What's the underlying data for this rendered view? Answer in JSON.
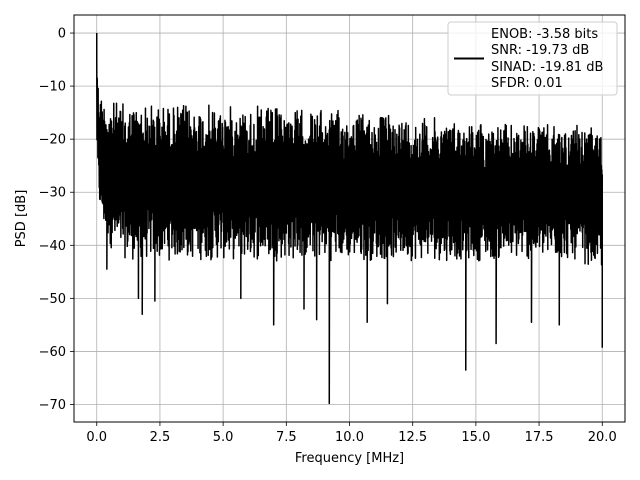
{
  "chart_data": {
    "type": "line",
    "xlabel": "Frequency [MHz]",
    "ylabel": "PSD [dB]",
    "xlim": [
      -0.9,
      20.9
    ],
    "ylim": [
      -73.3,
      3.4
    ],
    "xticks": [
      0.0,
      2.5,
      5.0,
      7.5,
      10.0,
      12.5,
      15.0,
      17.5,
      20.0
    ],
    "xtick_labels": [
      "0.0",
      "2.5",
      "5.0",
      "7.5",
      "10.0",
      "12.5",
      "15.0",
      "17.5",
      "20.0"
    ],
    "yticks": [
      0,
      -10,
      -20,
      -30,
      -40,
      -50,
      -60,
      -70
    ],
    "ytick_labels": [
      "0",
      "−10",
      "−20",
      "−30",
      "−40",
      "−50",
      "−60",
      "−70"
    ],
    "grid": true,
    "legend_position": "top-right",
    "line_color": "#000000",
    "series": [
      {
        "legend_lines": [
          "ENOB: -3.58 bits",
          "SNR: -19.73 dB",
          "SINAD: -19.81 dB",
          "SFDR: 0.01"
        ],
        "envelope": {
          "x": [
            0.0,
            0.05,
            0.12,
            0.3,
            0.6,
            1.0,
            1.5,
            2.0,
            2.5,
            3.0,
            4.0,
            5.0,
            6.0,
            7.0,
            8.0,
            9.0,
            10.0,
            11.0,
            12.0,
            13.0,
            14.0,
            15.0,
            16.0,
            17.0,
            18.0,
            19.0,
            20.0
          ],
          "upper": [
            0.0,
            -8.0,
            -10.5,
            -12.0,
            -12.5,
            -13.0,
            -13.0,
            -13.0,
            -13.0,
            -13.2,
            -13.2,
            -13.5,
            -13.6,
            -13.8,
            -14.0,
            -14.3,
            -14.6,
            -14.9,
            -15.2,
            -15.6,
            -16.0,
            -16.4,
            -16.8,
            -17.0,
            -17.2,
            -17.4,
            -18.0
          ],
          "lower": [
            -22.0,
            -30.0,
            -34.0,
            -38.0,
            -41.0,
            -42.5,
            -43.0,
            -43.0,
            -43.0,
            -43.0,
            -43.0,
            -43.0,
            -43.0,
            -43.0,
            -43.0,
            -43.0,
            -43.0,
            -43.0,
            -43.0,
            -43.0,
            -43.0,
            -43.0,
            -43.0,
            -43.0,
            -43.0,
            -43.0,
            -45.0
          ]
        },
        "deep_dips": [
          {
            "x": 0.4,
            "y": -44.5
          },
          {
            "x": 1.65,
            "y": -50.0
          },
          {
            "x": 1.8,
            "y": -53.0
          },
          {
            "x": 2.3,
            "y": -50.5
          },
          {
            "x": 5.7,
            "y": -50.0
          },
          {
            "x": 7.0,
            "y": -55.0
          },
          {
            "x": 8.2,
            "y": -52.0
          },
          {
            "x": 8.7,
            "y": -54.0
          },
          {
            "x": 9.2,
            "y": -69.8
          },
          {
            "x": 10.7,
            "y": -54.5
          },
          {
            "x": 11.5,
            "y": -51.0
          },
          {
            "x": 14.6,
            "y": -63.5
          },
          {
            "x": 15.8,
            "y": -58.5
          },
          {
            "x": 17.2,
            "y": -54.5
          },
          {
            "x": 18.3,
            "y": -55.0
          },
          {
            "x": 20.0,
            "y": -59.3
          }
        ]
      }
    ]
  }
}
